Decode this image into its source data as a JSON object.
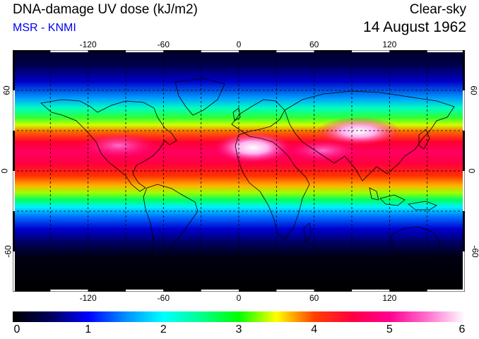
{
  "header": {
    "title": "DNA-damage UV dose (kJ/m2)",
    "source": "MSR - KNMI",
    "source_color": "#0000ee",
    "condition": "Clear-sky",
    "date": "14 August 1962"
  },
  "map": {
    "lon_ticks": [
      "-120",
      "-60",
      "0",
      "60",
      "120"
    ],
    "lon_values": [
      -120,
      -60,
      0,
      60,
      120
    ],
    "lat_ticks_left": [
      "60",
      "0",
      "-60"
    ],
    "lat_ticks_right": [
      "60",
      "0",
      "-60"
    ],
    "lat_values": [
      60,
      0,
      -60
    ],
    "grid_lons": [
      -150,
      -120,
      -90,
      -60,
      -30,
      0,
      30,
      60,
      90,
      120,
      150
    ],
    "grid_lats": [
      60,
      30,
      0,
      -30,
      -60
    ],
    "lon_range": [
      -180,
      180
    ],
    "lat_range": [
      -90,
      90
    ]
  },
  "colorbar": {
    "labels": [
      "0",
      "1",
      "2",
      "3",
      "4",
      "5",
      "6"
    ],
    "min": 0,
    "max": 6,
    "stops": [
      {
        "v": 0.0,
        "c": "#000000"
      },
      {
        "v": 0.5,
        "c": "#00005a"
      },
      {
        "v": 1.0,
        "c": "#0000ff"
      },
      {
        "v": 1.5,
        "c": "#0090ff"
      },
      {
        "v": 2.0,
        "c": "#00ffff"
      },
      {
        "v": 2.5,
        "c": "#00ff90"
      },
      {
        "v": 3.0,
        "c": "#00ff00"
      },
      {
        "v": 3.5,
        "c": "#ffff00"
      },
      {
        "v": 4.0,
        "c": "#ff4000"
      },
      {
        "v": 4.5,
        "c": "#ff0040"
      },
      {
        "v": 5.0,
        "c": "#ff0090"
      },
      {
        "v": 5.5,
        "c": "#ff70d0"
      },
      {
        "v": 6.0,
        "c": "#ffffff"
      }
    ]
  }
}
